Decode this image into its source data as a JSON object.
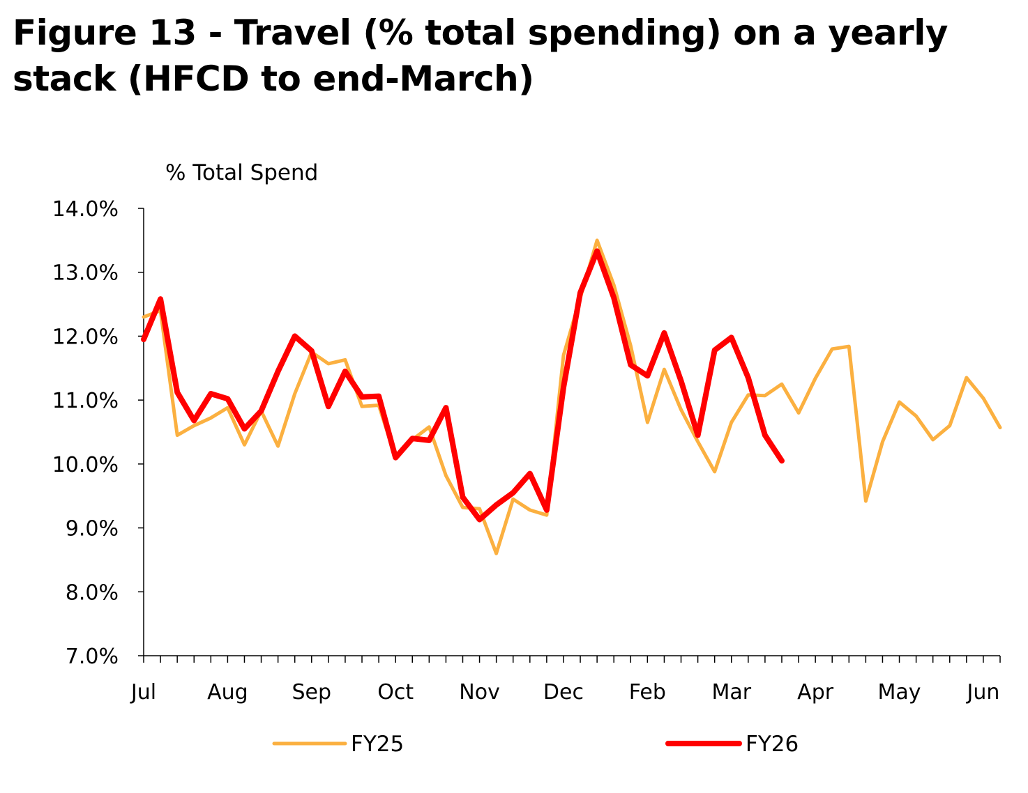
{
  "chart_data": {
    "type": "line",
    "title": "Figure 13 - Travel (% total spending) on a yearly stack (HFCD to end-March)",
    "ylabel": "% Total Spend",
    "xlabel": "",
    "ylim": [
      7.0,
      14.0
    ],
    "y_ticks": [
      "14.0%",
      "13.0%",
      "12.0%",
      "11.0%",
      "10.0%",
      "9.0%",
      "8.0%",
      "7.0%"
    ],
    "x_ticks": [
      "Jul",
      "Aug",
      "Sep",
      "Oct",
      "Nov",
      "Dec",
      "Feb",
      "Mar",
      "Apr",
      "May",
      "Jun"
    ],
    "x_tick_weeks": [
      0,
      5,
      10,
      15,
      20,
      25,
      30,
      35,
      40,
      45,
      50
    ],
    "weeks_per_year": 51,
    "legend_position": "bottom",
    "grid": false,
    "series": [
      {
        "name": "FY25",
        "color": "#FBB040",
        "values": [
          12.3,
          12.4,
          10.45,
          10.6,
          10.72,
          10.88,
          10.3,
          10.83,
          10.28,
          11.1,
          11.75,
          11.57,
          11.63,
          10.9,
          10.92,
          10.1,
          10.38,
          10.58,
          9.82,
          9.32,
          9.3,
          8.6,
          9.45,
          9.28,
          9.2,
          11.7,
          12.6,
          13.5,
          12.8,
          11.85,
          10.65,
          11.48,
          10.85,
          10.35,
          9.88,
          10.65,
          11.08,
          11.07,
          11.25,
          10.8,
          11.34,
          11.8,
          11.84,
          9.42,
          10.35,
          10.97,
          10.75,
          10.38,
          10.6,
          11.35,
          11.03,
          10.57
        ]
      },
      {
        "name": "FY26",
        "color": "#FF0000",
        "values": [
          11.95,
          12.58,
          11.12,
          10.68,
          11.1,
          11.02,
          10.55,
          10.83,
          11.45,
          12.0,
          11.77,
          10.9,
          11.45,
          11.05,
          11.06,
          10.1,
          10.4,
          10.37,
          10.88,
          9.48,
          9.13,
          9.36,
          9.55,
          9.85,
          9.28,
          11.2,
          12.68,
          13.33,
          12.6,
          11.55,
          11.38,
          12.05,
          11.3,
          10.45,
          11.78,
          11.98,
          11.35,
          10.45,
          10.05
        ]
      }
    ]
  }
}
